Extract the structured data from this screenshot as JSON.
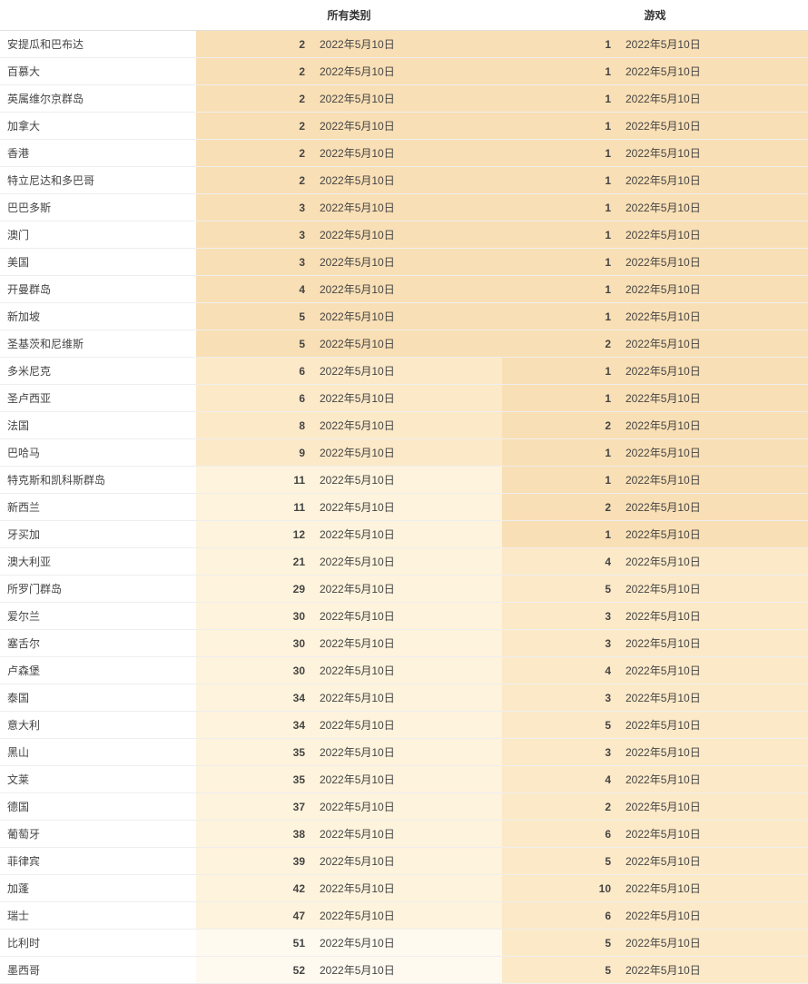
{
  "columns": {
    "country": "",
    "all_categories": "所有类别",
    "games": "游戏"
  },
  "date_label": "2022年5月10日",
  "tier_colors": {
    "1": "#f9dfb5",
    "2": "#fce9c8",
    "3": "#fef3dc",
    "4": "#fffaef"
  },
  "rows": [
    {
      "country": "安提瓜和巴布达",
      "rank1": 2,
      "tier1": 1,
      "rank2": 1,
      "tier2": 1
    },
    {
      "country": "百慕大",
      "rank1": 2,
      "tier1": 1,
      "rank2": 1,
      "tier2": 1
    },
    {
      "country": "英属维尔京群岛",
      "rank1": 2,
      "tier1": 1,
      "rank2": 1,
      "tier2": 1
    },
    {
      "country": "加拿大",
      "rank1": 2,
      "tier1": 1,
      "rank2": 1,
      "tier2": 1
    },
    {
      "country": "香港",
      "rank1": 2,
      "tier1": 1,
      "rank2": 1,
      "tier2": 1
    },
    {
      "country": "特立尼达和多巴哥",
      "rank1": 2,
      "tier1": 1,
      "rank2": 1,
      "tier2": 1
    },
    {
      "country": "巴巴多斯",
      "rank1": 3,
      "tier1": 1,
      "rank2": 1,
      "tier2": 1
    },
    {
      "country": "澳门",
      "rank1": 3,
      "tier1": 1,
      "rank2": 1,
      "tier2": 1
    },
    {
      "country": "美国",
      "rank1": 3,
      "tier1": 1,
      "rank2": 1,
      "tier2": 1
    },
    {
      "country": "开曼群岛",
      "rank1": 4,
      "tier1": 1,
      "rank2": 1,
      "tier2": 1
    },
    {
      "country": "新加坡",
      "rank1": 5,
      "tier1": 1,
      "rank2": 1,
      "tier2": 1
    },
    {
      "country": "圣基茨和尼维斯",
      "rank1": 5,
      "tier1": 1,
      "rank2": 2,
      "tier2": 1
    },
    {
      "country": "多米尼克",
      "rank1": 6,
      "tier1": 2,
      "rank2": 1,
      "tier2": 1
    },
    {
      "country": "圣卢西亚",
      "rank1": 6,
      "tier1": 2,
      "rank2": 1,
      "tier2": 1
    },
    {
      "country": "法国",
      "rank1": 8,
      "tier1": 2,
      "rank2": 2,
      "tier2": 1
    },
    {
      "country": "巴哈马",
      "rank1": 9,
      "tier1": 2,
      "rank2": 1,
      "tier2": 1
    },
    {
      "country": "特克斯和凯科斯群岛",
      "rank1": 11,
      "tier1": 3,
      "rank2": 1,
      "tier2": 1
    },
    {
      "country": "新西兰",
      "rank1": 11,
      "tier1": 3,
      "rank2": 2,
      "tier2": 1
    },
    {
      "country": "牙买加",
      "rank1": 12,
      "tier1": 3,
      "rank2": 1,
      "tier2": 1
    },
    {
      "country": "澳大利亚",
      "rank1": 21,
      "tier1": 3,
      "rank2": 4,
      "tier2": 2
    },
    {
      "country": "所罗门群岛",
      "rank1": 29,
      "tier1": 3,
      "rank2": 5,
      "tier2": 2
    },
    {
      "country": "爱尔兰",
      "rank1": 30,
      "tier1": 3,
      "rank2": 3,
      "tier2": 2
    },
    {
      "country": "塞舌尔",
      "rank1": 30,
      "tier1": 3,
      "rank2": 3,
      "tier2": 2
    },
    {
      "country": "卢森堡",
      "rank1": 30,
      "tier1": 3,
      "rank2": 4,
      "tier2": 2
    },
    {
      "country": "泰国",
      "rank1": 34,
      "tier1": 3,
      "rank2": 3,
      "tier2": 2
    },
    {
      "country": "意大利",
      "rank1": 34,
      "tier1": 3,
      "rank2": 5,
      "tier2": 2
    },
    {
      "country": "黑山",
      "rank1": 35,
      "tier1": 3,
      "rank2": 3,
      "tier2": 2
    },
    {
      "country": "文莱",
      "rank1": 35,
      "tier1": 3,
      "rank2": 4,
      "tier2": 2
    },
    {
      "country": "德国",
      "rank1": 37,
      "tier1": 3,
      "rank2": 2,
      "tier2": 2
    },
    {
      "country": "葡萄牙",
      "rank1": 38,
      "tier1": 3,
      "rank2": 6,
      "tier2": 2
    },
    {
      "country": "菲律宾",
      "rank1": 39,
      "tier1": 3,
      "rank2": 5,
      "tier2": 2
    },
    {
      "country": "加蓬",
      "rank1": 42,
      "tier1": 3,
      "rank2": 10,
      "tier2": 2
    },
    {
      "country": "瑞士",
      "rank1": 47,
      "tier1": 3,
      "rank2": 6,
      "tier2": 2
    },
    {
      "country": "比利时",
      "rank1": 51,
      "tier1": 4,
      "rank2": 5,
      "tier2": 2
    },
    {
      "country": "墨西哥",
      "rank1": 52,
      "tier1": 4,
      "rank2": 5,
      "tier2": 2
    }
  ]
}
